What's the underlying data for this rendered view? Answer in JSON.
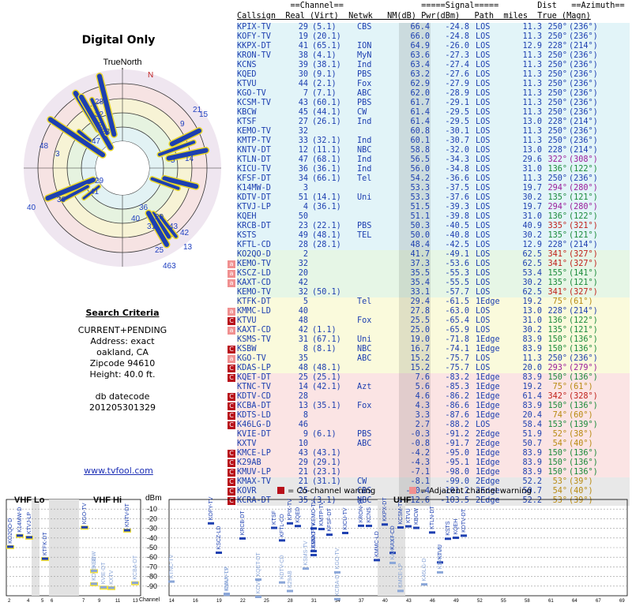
{
  "left_panel": {
    "title": "Digital Only",
    "truenorth_label": "TrueNorth",
    "north_marker": "N",
    "criteria_header": "Search Criteria",
    "criteria_lines": [
      "CURRENT+PENDING",
      "Address: exact",
      "oakland, CA",
      "Zipcode 94610",
      "Height: 40.0 ft."
    ],
    "db_lines": [
      "db datecode",
      "201205301329"
    ],
    "site_link": "www.tvfool.com"
  },
  "polar_labels": [
    {
      "t": "28",
      "c": "#2040c0"
    },
    {
      "t": "32",
      "c": "#2040c0"
    },
    {
      "t": "2",
      "c": "#2040c0"
    },
    {
      "t": "23",
      "c": "#2040c0"
    },
    {
      "t": "47",
      "c": "#2040c0"
    },
    {
      "t": "48",
      "c": "#2040c0"
    },
    {
      "t": "3",
      "c": "#2040c0"
    },
    {
      "t": "21",
      "c": "#2040c0"
    },
    {
      "t": "15",
      "c": "#2040c0"
    },
    {
      "t": "9",
      "c": "#2040c0"
    },
    {
      "t": "40",
      "c": "#2040c0"
    },
    {
      "t": "5",
      "c": "#2040c0"
    },
    {
      "t": "14",
      "c": "#2040c0"
    },
    {
      "t": "30",
      "c": "#2040c0"
    },
    {
      "t": "29",
      "c": "#2040c0"
    },
    {
      "t": "41",
      "c": "#2040c0"
    },
    {
      "t": "36",
      "c": "#2040c0"
    },
    {
      "t": "43",
      "c": "#2040c0"
    },
    {
      "t": "40",
      "c": "#2040c0"
    },
    {
      "t": "20",
      "c": "#2040c0"
    },
    {
      "t": "31",
      "c": "#2040c0"
    },
    {
      "t": "25",
      "c": "#2040c0"
    },
    {
      "t": "13",
      "c": "#2040c0"
    },
    {
      "t": "463",
      "c": "#2040c0"
    },
    {
      "t": "42",
      "c": "#2040c0"
    }
  ],
  "table": {
    "header_line1": "           ==Channel==                =====Signal=====        Dist   ==Azimuth==",
    "header_line2": "Callsign  Real (Virt)  Netwk   NM(dB) Pwr(dBm)   Path  miles  True (Magn)",
    "rows": [
      {
        "call": "KPIX-TV",
        "real": "29",
        "virt": "(5.1)",
        "net": "CBS",
        "nm": "66.4",
        "pwr": "-24.8",
        "path": "LOS",
        "dist": "11.3",
        "az": "250°",
        "mag": "(236°)",
        "bg": "#e2f4f8",
        "warn": ""
      },
      {
        "call": "KOFY-TV",
        "real": "19",
        "virt": "(20.1)",
        "net": "",
        "nm": "66.0",
        "pwr": "-24.8",
        "path": "LOS",
        "dist": "11.3",
        "az": "250°",
        "mag": "(236°)",
        "bg": "#e2f4f8",
        "warn": ""
      },
      {
        "call": "KKPX-DT",
        "real": "41",
        "virt": "(65.1)",
        "net": "ION",
        "nm": "64.9",
        "pwr": "-26.0",
        "path": "LOS",
        "dist": "12.9",
        "az": "228°",
        "mag": "(214°)",
        "bg": "#e2f4f8",
        "warn": ""
      },
      {
        "call": "KRON-TV",
        "real": "38",
        "virt": "(4.1)",
        "net": "MyN",
        "nm": "63.6",
        "pwr": "-27.3",
        "path": "LOS",
        "dist": "11.3",
        "az": "250°",
        "mag": "(236°)",
        "bg": "#e2f4f8",
        "warn": ""
      },
      {
        "call": "KCNS",
        "real": "39",
        "virt": "(38.1)",
        "net": "Ind",
        "nm": "63.4",
        "pwr": "-27.4",
        "path": "LOS",
        "dist": "11.3",
        "az": "250°",
        "mag": "(236°)",
        "bg": "#e2f4f8",
        "warn": ""
      },
      {
        "call": "KQED",
        "real": "30",
        "virt": "(9.1)",
        "net": "PBS",
        "nm": "63.2",
        "pwr": "-27.6",
        "path": "LOS",
        "dist": "11.3",
        "az": "250°",
        "mag": "(236°)",
        "bg": "#e2f4f8",
        "warn": ""
      },
      {
        "call": "KTVU",
        "real": "44",
        "virt": "(2.1)",
        "net": "Fox",
        "nm": "62.9",
        "pwr": "-27.9",
        "path": "LOS",
        "dist": "11.3",
        "az": "250°",
        "mag": "(236°)",
        "bg": "#e2f4f8",
        "warn": ""
      },
      {
        "call": "KGO-TV",
        "real": "7",
        "virt": "(7.1)",
        "net": "ABC",
        "nm": "62.0",
        "pwr": "-28.9",
        "path": "LOS",
        "dist": "11.3",
        "az": "250°",
        "mag": "(236°)",
        "bg": "#e2f4f8",
        "warn": ""
      },
      {
        "call": "KCSM-TV",
        "real": "43",
        "virt": "(60.1)",
        "net": "PBS",
        "nm": "61.7",
        "pwr": "-29.1",
        "path": "LOS",
        "dist": "11.3",
        "az": "250°",
        "mag": "(236°)",
        "bg": "#e2f4f8",
        "warn": ""
      },
      {
        "call": "KBCW",
        "real": "45",
        "virt": "(44.1)",
        "net": "CW",
        "nm": "61.4",
        "pwr": "-29.5",
        "path": "LOS",
        "dist": "11.3",
        "az": "250°",
        "mag": "(236°)",
        "bg": "#e2f4f8",
        "warn": ""
      },
      {
        "call": "KTSF",
        "real": "27",
        "virt": "(26.1)",
        "net": "Ind",
        "nm": "61.4",
        "pwr": "-29.5",
        "path": "LOS",
        "dist": "13.0",
        "az": "228°",
        "mag": "(214°)",
        "bg": "#e2f4f8",
        "warn": ""
      },
      {
        "call": "KEMO-TV",
        "real": "32",
        "virt": "",
        "net": "",
        "nm": "60.8",
        "pwr": "-30.1",
        "path": "LOS",
        "dist": "11.3",
        "az": "250°",
        "mag": "(236°)",
        "bg": "#e2f4f8",
        "warn": ""
      },
      {
        "call": "KMTP-TV",
        "real": "33",
        "virt": "(32.1)",
        "net": "Ind",
        "nm": "60.1",
        "pwr": "-30.7",
        "path": "LOS",
        "dist": "11.3",
        "az": "250°",
        "mag": "(236°)",
        "bg": "#e2f4f8",
        "warn": ""
      },
      {
        "call": "KNTV-DT",
        "real": "12",
        "virt": "(11.1)",
        "net": "NBC",
        "nm": "58.8",
        "pwr": "-32.0",
        "path": "LOS",
        "dist": "13.0",
        "az": "228°",
        "mag": "(214°)",
        "bg": "#e2f4f8",
        "warn": ""
      },
      {
        "call": "KTLN-DT",
        "real": "47",
        "virt": "(68.1)",
        "net": "Ind",
        "nm": "56.5",
        "pwr": "-34.3",
        "path": "LOS",
        "dist": "29.6",
        "az": "322°",
        "mag": "(308°)",
        "bg": "#e2f4f8",
        "warn": ""
      },
      {
        "call": "KICU-TV",
        "real": "36",
        "virt": "(36.1)",
        "net": "Ind",
        "nm": "56.0",
        "pwr": "-34.8",
        "path": "LOS",
        "dist": "31.0",
        "az": "136°",
        "mag": "(122°)",
        "bg": "#e2f4f8",
        "warn": ""
      },
      {
        "call": "KFSF-DT",
        "real": "34",
        "virt": "(66.1)",
        "net": "Tel",
        "nm": "54.2",
        "pwr": "-36.6",
        "path": "LOS",
        "dist": "11.3",
        "az": "250°",
        "mag": "(236°)",
        "bg": "#e2f4f8",
        "warn": ""
      },
      {
        "call": "K14MW-D",
        "real": "3",
        "virt": "",
        "net": "",
        "nm": "53.3",
        "pwr": "-37.5",
        "path": "LOS",
        "dist": "19.7",
        "az": "294°",
        "mag": "(280°)",
        "bg": "#e2f4f8",
        "warn": ""
      },
      {
        "call": "KDTV-DT",
        "real": "51",
        "virt": "(14.1)",
        "net": "Uni",
        "nm": "53.3",
        "pwr": "-37.6",
        "path": "LOS",
        "dist": "30.2",
        "az": "135°",
        "mag": "(121°)",
        "bg": "#e2f4f8",
        "warn": ""
      },
      {
        "call": "KTVJ-LP",
        "real": "4",
        "virt": "(36.1)",
        "net": "",
        "nm": "51.5",
        "pwr": "-39.3",
        "path": "LOS",
        "dist": "19.7",
        "az": "294°",
        "mag": "(280°)",
        "bg": "#e2f4f8",
        "warn": ""
      },
      {
        "call": "KQEH",
        "real": "50",
        "virt": "",
        "net": "",
        "nm": "51.1",
        "pwr": "-39.8",
        "path": "LOS",
        "dist": "31.0",
        "az": "136°",
        "mag": "(122°)",
        "bg": "#e2f4f8",
        "warn": ""
      },
      {
        "call": "KRCB-DT",
        "real": "23",
        "virt": "(22.1)",
        "net": "PBS",
        "nm": "50.3",
        "pwr": "-40.5",
        "path": "LOS",
        "dist": "40.9",
        "az": "335°",
        "mag": "(321°)",
        "bg": "#e2f4f8",
        "warn": ""
      },
      {
        "call": "KSTS",
        "real": "49",
        "virt": "(48.1)",
        "net": "TEL",
        "nm": "50.0",
        "pwr": "-40.8",
        "path": "LOS",
        "dist": "30.2",
        "az": "135°",
        "mag": "(121°)",
        "bg": "#e2f4f8",
        "warn": ""
      },
      {
        "call": "KFTL-CD",
        "real": "28",
        "virt": "(28.1)",
        "net": "",
        "nm": "48.4",
        "pwr": "-42.5",
        "path": "LOS",
        "dist": "12.9",
        "az": "228°",
        "mag": "(214°)",
        "bg": "#e2f4f8",
        "warn": ""
      },
      {
        "call": "KO2QO-D",
        "real": "2",
        "virt": "",
        "net": "",
        "nm": "41.7",
        "pwr": "-49.1",
        "path": "LOS",
        "dist": "62.5",
        "az": "341°",
        "mag": "(327°)",
        "bg": "#e6f6e6",
        "warn": ""
      },
      {
        "call": "KEMO-TV",
        "real": "32",
        "virt": "",
        "net": "",
        "nm": "37.3",
        "pwr": "-53.6",
        "path": "LOS",
        "dist": "62.5",
        "az": "341°",
        "mag": "(327°)",
        "bg": "#e6f6e6",
        "warn": "adj"
      },
      {
        "call": "KSCZ-LD",
        "real": "20",
        "virt": "",
        "net": "",
        "nm": "35.5",
        "pwr": "-55.3",
        "path": "LOS",
        "dist": "53.4",
        "az": "155°",
        "mag": "(141°)",
        "bg": "#e6f6e6",
        "warn": "adj"
      },
      {
        "call": "KAXT-CD",
        "real": "42",
        "virt": "",
        "net": "",
        "nm": "35.4",
        "pwr": "-55.5",
        "path": "LOS",
        "dist": "30.2",
        "az": "135°",
        "mag": "(121°)",
        "bg": "#e6f6e6",
        "warn": "adj"
      },
      {
        "call": "KEMO-TV",
        "real": "32",
        "virt": "(50.1)",
        "net": "",
        "nm": "33.1",
        "pwr": "-57.7",
        "path": "LOS",
        "dist": "62.5",
        "az": "341°",
        "mag": "(327°)",
        "bg": "#e6f6e6",
        "warn": ""
      },
      {
        "call": "KTFK-DT",
        "real": "5",
        "virt": "",
        "net": "Tel",
        "nm": "29.4",
        "pwr": "-61.5",
        "path": "1Edge",
        "dist": "19.2",
        "az": "75°",
        "mag": "(61°)",
        "bg": "#fafadc",
        "warn": ""
      },
      {
        "call": "KMMC-LD",
        "real": "40",
        "virt": "",
        "net": "",
        "nm": "27.8",
        "pwr": "-63.0",
        "path": "LOS",
        "dist": "13.0",
        "az": "228°",
        "mag": "(214°)",
        "bg": "#fafadc",
        "warn": "adj"
      },
      {
        "call": "KTVU",
        "real": "48",
        "virt": "",
        "net": "Fox",
        "nm": "25.5",
        "pwr": "-65.4",
        "path": "LOS",
        "dist": "31.0",
        "az": "136°",
        "mag": "(122°)",
        "bg": "#fafadc",
        "warn": "co"
      },
      {
        "call": "KAXT-CD",
        "real": "42",
        "virt": "(1.1)",
        "net": "",
        "nm": "25.0",
        "pwr": "-65.9",
        "path": "LOS",
        "dist": "30.2",
        "az": "135°",
        "mag": "(121°)",
        "bg": "#fafadc",
        "warn": "adj"
      },
      {
        "call": "KSMS-TV",
        "real": "31",
        "virt": "(67.1)",
        "net": "Uni",
        "nm": "19.0",
        "pwr": "-71.8",
        "path": "1Edge",
        "dist": "83.9",
        "az": "150°",
        "mag": "(136°)",
        "bg": "#fafadc",
        "warn": ""
      },
      {
        "call": "KSBW",
        "real": "8",
        "virt": "(8.1)",
        "net": "NBC",
        "nm": "16.7",
        "pwr": "-74.1",
        "path": "1Edge",
        "dist": "83.9",
        "az": "150°",
        "mag": "(136°)",
        "bg": "#fafadc",
        "warn": "co"
      },
      {
        "call": "KGO-TV",
        "real": "35",
        "virt": "",
        "net": "ABC",
        "nm": "15.2",
        "pwr": "-75.7",
        "path": "LOS",
        "dist": "11.3",
        "az": "250°",
        "mag": "(236°)",
        "bg": "#fafadc",
        "warn": "adj"
      },
      {
        "call": "KDAS-LP",
        "real": "48",
        "virt": "(48.1)",
        "net": "",
        "nm": "15.2",
        "pwr": "-75.7",
        "path": "LOS",
        "dist": "20.0",
        "az": "293°",
        "mag": "(279°)",
        "bg": "#fafadc",
        "warn": "co"
      },
      {
        "call": "KQET-DT",
        "real": "25",
        "virt": "(25.1)",
        "net": "",
        "nm": "7.6",
        "pwr": "-83.2",
        "path": "1Edge",
        "dist": "83.9",
        "az": "150°",
        "mag": "(136°)",
        "bg": "#fbe4e4",
        "warn": "co"
      },
      {
        "call": "KTNC-TV",
        "real": "14",
        "virt": "(42.1)",
        "net": "Azt",
        "nm": "5.6",
        "pwr": "-85.3",
        "path": "1Edge",
        "dist": "19.2",
        "az": "75°",
        "mag": "(61°)",
        "bg": "#fbe4e4",
        "warn": ""
      },
      {
        "call": "KDTV-CD",
        "real": "28",
        "virt": "",
        "net": "",
        "nm": "4.6",
        "pwr": "-86.2",
        "path": "1Edge",
        "dist": "61.4",
        "az": "342°",
        "mag": "(328°)",
        "bg": "#fbe4e4",
        "warn": "co"
      },
      {
        "call": "KCBA-DT",
        "real": "13",
        "virt": "(35.1)",
        "net": "Fox",
        "nm": "4.3",
        "pwr": "-86.6",
        "path": "1Edge",
        "dist": "83.9",
        "az": "150°",
        "mag": "(136°)",
        "bg": "#fbe4e4",
        "warn": "co"
      },
      {
        "call": "KDTS-LD",
        "real": "8",
        "virt": "",
        "net": "",
        "nm": "3.3",
        "pwr": "-87.6",
        "path": "1Edge",
        "dist": "20.4",
        "az": "74°",
        "mag": "(60°)",
        "bg": "#fbe4e4",
        "warn": "co"
      },
      {
        "call": "K46LG-D",
        "real": "46",
        "virt": "",
        "net": "",
        "nm": "2.7",
        "pwr": "-88.2",
        "path": "LOS",
        "dist": "58.4",
        "az": "153°",
        "mag": "(139°)",
        "bg": "#fbe4e4",
        "warn": "co"
      },
      {
        "call": "KVIE-DT",
        "real": "9",
        "virt": "(6.1)",
        "net": "PBS",
        "nm": "-0.3",
        "pwr": "-91.2",
        "path": "2Edge",
        "dist": "51.9",
        "az": "52°",
        "mag": "(38°)",
        "bg": "#fbe4e4",
        "warn": ""
      },
      {
        "call": "KXTV",
        "real": "10",
        "virt": "",
        "net": "ABC",
        "nm": "-0.8",
        "pwr": "-91.7",
        "path": "2Edge",
        "dist": "50.7",
        "az": "54°",
        "mag": "(40°)",
        "bg": "#fbe4e4",
        "warn": ""
      },
      {
        "call": "KMCE-LP",
        "real": "43",
        "virt": "(43.1)",
        "net": "",
        "nm": "-4.2",
        "pwr": "-95.0",
        "path": "1Edge",
        "dist": "83.9",
        "az": "150°",
        "mag": "(136°)",
        "bg": "#fbe4e4",
        "warn": "co"
      },
      {
        "call": "K29AB",
        "real": "29",
        "virt": "(29.1)",
        "net": "",
        "nm": "-4.3",
        "pwr": "-95.1",
        "path": "1Edge",
        "dist": "83.9",
        "az": "150°",
        "mag": "(136°)",
        "bg": "#fbe4e4",
        "warn": "co"
      },
      {
        "call": "KMUV-LP",
        "real": "21",
        "virt": "(23.1)",
        "net": "",
        "nm": "-7.1",
        "pwr": "-98.0",
        "path": "1Edge",
        "dist": "83.9",
        "az": "150°",
        "mag": "(136°)",
        "bg": "#fbe4e4",
        "warn": "co"
      },
      {
        "call": "KMAX-TV",
        "real": "21",
        "virt": "(31.1)",
        "net": "CW",
        "nm": "-8.1",
        "pwr": "-99.0",
        "path": "2Edge",
        "dist": "52.2",
        "az": "53°",
        "mag": "(39°)",
        "bg": "#e8e8e8",
        "warn": "co"
      },
      {
        "call": "KOVR",
        "real": "25",
        "virt": "",
        "net": "CBS",
        "nm": "-10.4",
        "pwr": "-101.2",
        "path": "2Edge",
        "dist": "50.7",
        "az": "54°",
        "mag": "(40°)",
        "bg": "#e8e8e8",
        "warn": "co"
      },
      {
        "call": "KCRA-DT",
        "real": "35",
        "virt": "(3.1)",
        "net": "NBC",
        "nm": "-12.6",
        "pwr": "-103.5",
        "path": "2Edge",
        "dist": "52.2",
        "az": "53°",
        "mag": "(39°)",
        "bg": "#e8e8e8",
        "warn": "co"
      }
    ]
  },
  "legend": {
    "co_label": "= Co-channel warning",
    "adj_label": "= Adjacent channel warning",
    "co_color": "#b8101a",
    "adj_color": "#f09090"
  },
  "spectrum": {
    "band_vhf_lo": "VHF Lo",
    "band_vhf_hi": "VHF Hi",
    "band_uhf": "UHF",
    "dbm_label": "dBm",
    "channel_label": "Channel",
    "dbm_ticks": [
      "-10",
      "-20",
      "-30",
      "-40",
      "-50",
      "-60",
      "-70",
      "-80",
      "-90"
    ],
    "channel_ticks_vhf": [
      "2",
      "4",
      "5",
      "6",
      "7",
      "9",
      "11",
      "13"
    ],
    "channel_ticks_uhf": [
      "14",
      "16",
      "19",
      "22",
      "25",
      "28",
      "31",
      "34",
      "37",
      "40",
      "43",
      "46",
      "49",
      "52",
      "55",
      "58",
      "61",
      "64",
      "67",
      "69"
    ]
  },
  "colors": {
    "strong_green": "#e2f4f8",
    "moderate": "#e6f6e6",
    "weak_yellow": "#fafadc",
    "poor_red": "#fbe4e4",
    "none_gray": "#e8e8e8",
    "signal_blue": "#1d3fb0"
  }
}
